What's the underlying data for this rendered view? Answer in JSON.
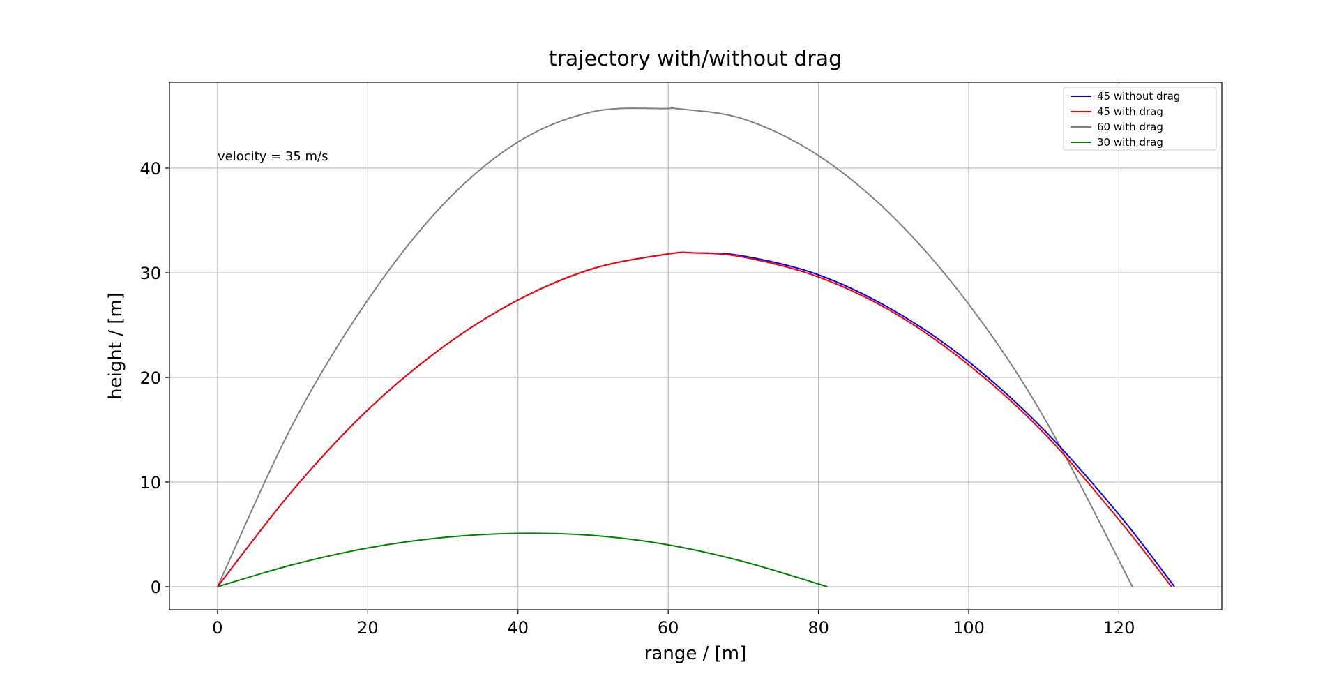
{
  "chart_data": {
    "type": "line",
    "title": "trajectory with/without drag",
    "xlabel": "range / [m]",
    "ylabel": "height / [m]",
    "xlim": [
      -6.4,
      133.7
    ],
    "ylim": [
      -2.2,
      48.2
    ],
    "xticks": [
      0,
      20,
      40,
      60,
      80,
      100,
      120
    ],
    "yticks": [
      0,
      10,
      20,
      30,
      40
    ],
    "grid": true,
    "legend_position": "top-right",
    "annotation": "velocity = 35 m/s",
    "series": [
      {
        "name": "45 without drag",
        "color": "#0000ff",
        "x": [
          0,
          10,
          20,
          30,
          40,
          50,
          60,
          63.7,
          70,
          80,
          90,
          100,
          110,
          120,
          127.4
        ],
        "y": [
          0,
          9.2,
          16.9,
          22.9,
          27.4,
          30.4,
          31.8,
          31.9,
          31.6,
          29.8,
          26.4,
          21.5,
          15.0,
          6.9,
          0
        ]
      },
      {
        "name": "45 with drag",
        "color": "#ff0000",
        "x": [
          0,
          10,
          20,
          30,
          40,
          50,
          60,
          63.5,
          70,
          80,
          90,
          100,
          110,
          120,
          127.0
        ],
        "y": [
          0,
          9.2,
          16.9,
          22.9,
          27.4,
          30.4,
          31.8,
          31.9,
          31.5,
          29.6,
          26.2,
          21.2,
          14.7,
          6.4,
          0
        ]
      },
      {
        "name": "60 with drag",
        "color": "#808080",
        "x": [
          0,
          10,
          20,
          30,
          40,
          50,
          60,
          61,
          70,
          80,
          90,
          100,
          110,
          121.8
        ],
        "y": [
          0,
          15.5,
          27.4,
          36.5,
          42.5,
          45.4,
          45.7,
          45.7,
          44.7,
          41.2,
          35.3,
          27.0,
          16.2,
          0
        ]
      },
      {
        "name": "30 with drag",
        "color": "#008000",
        "x": [
          0,
          10,
          20,
          30,
          40,
          50,
          60,
          70,
          81.2
        ],
        "y": [
          0,
          2.1,
          3.7,
          4.7,
          5.1,
          4.9,
          4.0,
          2.4,
          0
        ]
      }
    ]
  }
}
